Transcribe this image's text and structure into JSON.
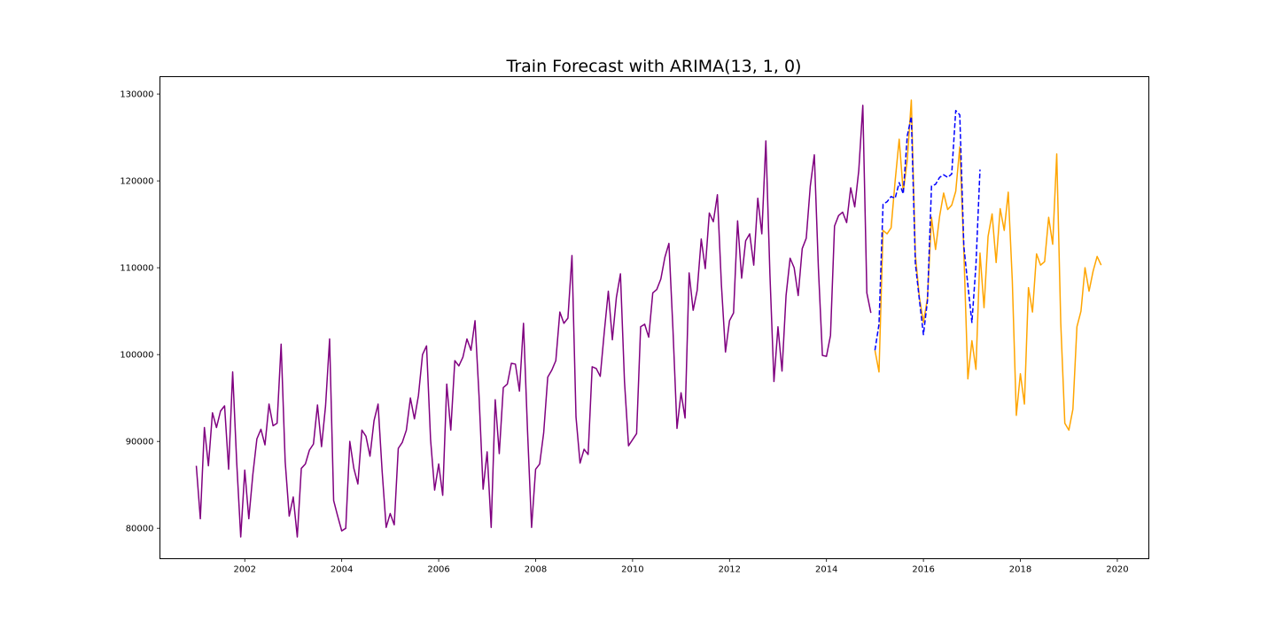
{
  "chart_data": {
    "type": "line",
    "title": "Train Forecast with ARIMA(13, 1, 0)",
    "xlabel": "",
    "ylabel": "",
    "xlim": [
      2000.25,
      2020.65
    ],
    "ylim": [
      76500,
      132000
    ],
    "x_ticks": [
      2002,
      2004,
      2006,
      2008,
      2010,
      2012,
      2014,
      2016,
      2018,
      2020
    ],
    "x_tick_labels": [
      "2002",
      "2004",
      "2006",
      "2008",
      "2010",
      "2012",
      "2014",
      "2016",
      "2018",
      "2020"
    ],
    "y_ticks": [
      80000,
      90000,
      100000,
      110000,
      120000,
      130000
    ],
    "y_tick_labels": [
      "80000",
      "90000",
      "100000",
      "110000",
      "120000",
      "130000"
    ],
    "grid": false,
    "legend": "none",
    "series": [
      {
        "color": "#800080",
        "style": "solid",
        "start": 2001.0,
        "step": 0.08333,
        "values": [
          87200,
          81100,
          91600,
          87200,
          93300,
          91600,
          93500,
          94100,
          86800,
          98000,
          87600,
          79000,
          86700,
          81100,
          86200,
          90300,
          91400,
          89600,
          94300,
          91800,
          92100,
          101200,
          87700,
          81400,
          83600,
          79000,
          86900,
          87400,
          89000,
          89700,
          94200,
          89400,
          94100,
          101800,
          83200,
          81400,
          79700,
          80000,
          90000,
          86900,
          85100,
          91300,
          90600,
          88300,
          92400,
          94300,
          86600,
          80100,
          81700,
          80400,
          89200,
          89900,
          91300,
          95000,
          92600,
          95300,
          100000,
          101000,
          90200,
          84400,
          87400,
          83800,
          96600,
          91300,
          99300,
          98700,
          99700,
          101800,
          100500,
          103900,
          95200,
          84500,
          88800,
          80100,
          94800,
          88600,
          96200,
          96600,
          99000,
          98900,
          95800,
          103600,
          91200,
          80100,
          86800,
          87400,
          91000,
          97400,
          98200,
          99300,
          104900,
          103600,
          104200,
          111400,
          92800,
          87500,
          89100,
          88500,
          98600,
          98400,
          97500,
          102600,
          107300,
          101700,
          106600,
          109300,
          96900,
          89500,
          90200,
          90900,
          103200,
          103500,
          102000,
          107100,
          107500,
          108700,
          111200,
          112800,
          102900,
          91500,
          95600,
          92700,
          109400,
          105100,
          107400,
          113300,
          109900,
          116300,
          115300,
          118400,
          108000,
          100300,
          103900,
          104800,
          115400,
          108800,
          113100,
          113900,
          110300,
          118000,
          113900,
          124600,
          109300,
          96900,
          103200,
          98100,
          106800,
          111100,
          110000,
          106800,
          112200,
          113400,
          119400,
          123000,
          110000,
          99900,
          99800,
          102200,
          114800,
          116000,
          116400,
          115200,
          119200,
          117000,
          121200,
          128700,
          107100,
          104800
        ]
      },
      {
        "color": "#FFA500",
        "style": "solid",
        "start": 2015.0,
        "step": 0.08333,
        "values": [
          100500,
          98000,
          114300,
          113900,
          114600,
          120000,
          124800,
          118700,
          122400,
          129300,
          111500,
          106600,
          103700,
          106500,
          115800,
          112100,
          115900,
          118600,
          116700,
          117200,
          118800,
          123900,
          112000,
          97200,
          101600,
          98300,
          111700,
          105400,
          113600,
          116200,
          110600,
          116800,
          114300,
          118700,
          108500,
          93000,
          97800,
          94300,
          107700,
          104900,
          111600,
          110300,
          110700,
          115800,
          112700,
          123100,
          103600,
          92100,
          91300,
          93700,
          103200,
          105000,
          110000,
          107300,
          109600,
          111300,
          110300
        ]
      },
      {
        "color": "#0000FF",
        "style": "dashed",
        "start": 2015.0,
        "step": 0.08333,
        "values": [
          100500,
          103500,
          117300,
          117600,
          118200,
          118000,
          119800,
          118500,
          125200,
          127400,
          110500,
          106300,
          102300,
          106200,
          119400,
          119600,
          120400,
          120700,
          120400,
          120800,
          128100,
          127600,
          112500,
          108000,
          103700,
          110300,
          121300
        ]
      }
    ]
  }
}
